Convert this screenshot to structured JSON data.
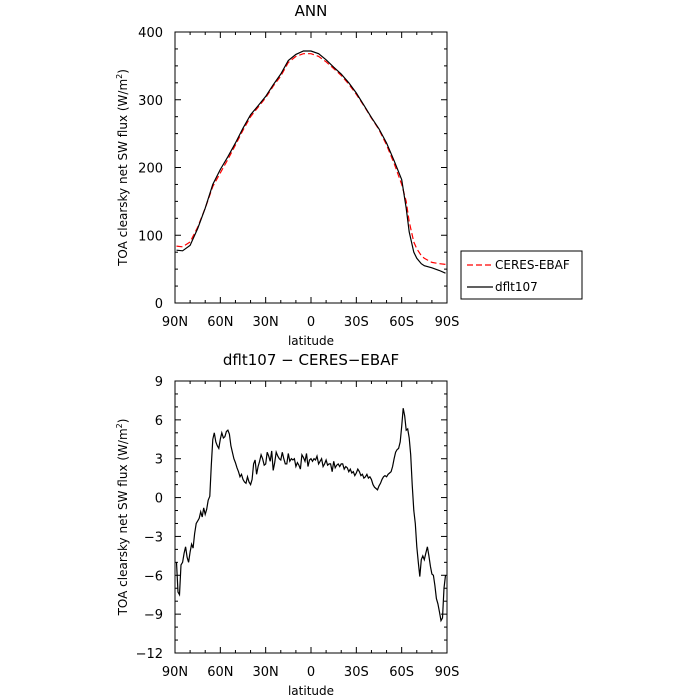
{
  "chart_data": [
    {
      "type": "line",
      "title": "ANN",
      "xlabel": "latitude",
      "ylabel": "TOA clearsky net SW flux (W/m",
      "ylabel_sup": "2",
      "ylabel_end": ")",
      "xlim": [
        90,
        -90
      ],
      "ylim": [
        0,
        400
      ],
      "xticks": [
        {
          "value": 90,
          "label": "90N"
        },
        {
          "value": 60,
          "label": "60N"
        },
        {
          "value": 30,
          "label": "30N"
        },
        {
          "value": 0,
          "label": "0"
        },
        {
          "value": -30,
          "label": "30S"
        },
        {
          "value": -60,
          "label": "60S"
        },
        {
          "value": -90,
          "label": "90S"
        }
      ],
      "yticks": [
        {
          "value": 0,
          "label": "0"
        },
        {
          "value": 100,
          "label": "100"
        },
        {
          "value": 200,
          "label": "200"
        },
        {
          "value": 300,
          "label": "300"
        },
        {
          "value": 400,
          "label": "400"
        }
      ],
      "legend": {
        "placement": "right"
      },
      "series": [
        {
          "name": "CERES-EBAF",
          "color": "#ff0000",
          "dash": "dashed",
          "x": [
            89,
            85,
            80,
            75,
            70,
            65,
            60,
            55,
            50,
            45,
            40,
            35,
            30,
            25,
            20,
            15,
            10,
            5,
            0,
            -5,
            -10,
            -15,
            -20,
            -25,
            -30,
            -35,
            -40,
            -45,
            -50,
            -55,
            -60,
            -63,
            -65,
            -68,
            -70,
            -73,
            -75,
            -80,
            -85,
            -89
          ],
          "y": [
            84,
            83,
            90,
            112,
            140,
            172,
            192,
            212,
            233,
            255,
            275,
            289,
            303,
            320,
            335,
            355,
            364,
            368,
            368,
            364,
            356,
            346,
            336,
            323,
            308,
            291,
            273,
            256,
            233,
            206,
            175,
            150,
            120,
            90,
            80,
            70,
            66,
            60,
            58,
            57
          ]
        },
        {
          "name": "dflt107",
          "color": "#000000",
          "dash": "solid",
          "x": [
            89,
            85,
            80,
            75,
            70,
            65,
            60,
            55,
            50,
            45,
            40,
            35,
            30,
            25,
            20,
            15,
            10,
            5,
            0,
            -5,
            -10,
            -15,
            -20,
            -25,
            -30,
            -35,
            -40,
            -45,
            -50,
            -55,
            -60,
            -63,
            -65,
            -68,
            -70,
            -73,
            -75,
            -80,
            -85,
            -89
          ],
          "y": [
            78,
            77,
            85,
            110,
            140,
            175,
            197,
            216,
            236,
            258,
            278,
            291,
            305,
            322,
            338,
            358,
            367,
            372,
            372,
            368,
            359,
            348,
            338,
            325,
            310,
            292,
            274,
            257,
            236,
            210,
            182,
            140,
            105,
            75,
            66,
            58,
            55,
            52,
            48,
            44
          ]
        }
      ]
    },
    {
      "type": "line",
      "title": "dflt107 − CERES−EBAF",
      "xlabel": "latitude",
      "ylabel": "TOA clearsky net SW flux (W/m",
      "ylabel_sup": "2",
      "ylabel_end": ")",
      "xlim": [
        90,
        -90
      ],
      "ylim": [
        -12,
        9
      ],
      "xticks": [
        {
          "value": 90,
          "label": "90N"
        },
        {
          "value": 60,
          "label": "60N"
        },
        {
          "value": 30,
          "label": "30N"
        },
        {
          "value": 0,
          "label": "0"
        },
        {
          "value": -30,
          "label": "30S"
        },
        {
          "value": -60,
          "label": "60S"
        },
        {
          "value": -90,
          "label": "90S"
        }
      ],
      "yticks": [
        {
          "value": -12,
          "label": "−12"
        },
        {
          "value": -9,
          "label": "−9"
        },
        {
          "value": -6,
          "label": "−6"
        },
        {
          "value": -3,
          "label": "−3"
        },
        {
          "value": 0,
          "label": "0"
        },
        {
          "value": 3,
          "label": "3"
        },
        {
          "value": 6,
          "label": "6"
        },
        {
          "value": 9,
          "label": "9"
        }
      ],
      "series": [
        {
          "color": "#000000",
          "dash": "solid",
          "x": [
            89,
            88,
            87,
            86,
            85,
            84,
            83,
            82,
            81,
            80,
            79,
            78,
            77,
            76,
            75,
            74,
            73,
            72,
            71,
            70,
            69,
            68,
            67,
            66,
            65,
            64,
            63,
            62,
            61,
            60,
            59,
            58,
            57,
            56,
            55,
            54,
            53,
            52,
            51,
            50,
            49,
            48,
            47,
            46,
            45,
            44,
            43,
            42,
            41,
            40,
            39,
            38,
            37,
            36,
            35,
            34,
            33,
            32,
            31,
            30,
            29,
            28,
            27,
            26,
            25,
            24,
            23,
            22,
            21,
            20,
            19,
            18,
            17,
            16,
            15,
            14,
            13,
            12,
            11,
            10,
            9,
            8,
            7,
            6,
            5,
            4,
            3,
            2,
            1,
            0,
            -1,
            -2,
            -3,
            -4,
            -5,
            -6,
            -7,
            -8,
            -9,
            -10,
            -11,
            -12,
            -13,
            -14,
            -15,
            -16,
            -17,
            -18,
            -19,
            -20,
            -21,
            -22,
            -23,
            -24,
            -25,
            -26,
            -27,
            -28,
            -29,
            -30,
            -31,
            -32,
            -33,
            -34,
            -35,
            -36,
            -37,
            -38,
            -39,
            -40,
            -41,
            -42,
            -43,
            -44,
            -45,
            -46,
            -47,
            -48,
            -49,
            -50,
            -51,
            -52,
            -53,
            -54,
            -55,
            -56,
            -57,
            -58,
            -59,
            -60,
            -61,
            -62,
            -63,
            -64,
            -65,
            -66,
            -67,
            -68,
            -69,
            -70,
            -71,
            -72,
            -73,
            -74,
            -75,
            -76,
            -77,
            -78,
            -79,
            -80,
            -81,
            -82,
            -83,
            -84,
            -85,
            -86,
            -87,
            -88,
            -89
          ],
          "y": [
            -5.0,
            -7.3,
            -7.5,
            -5.2,
            -5.0,
            -4.3,
            -3.8,
            -4.6,
            -5.0,
            -4.2,
            -3.6,
            -3.9,
            -2.8,
            -2.0,
            -1.8,
            -1.6,
            -1.1,
            -1.5,
            -0.8,
            -1.3,
            -0.9,
            -0.2,
            0.1,
            2.5,
            4.5,
            5.0,
            4.3,
            4.0,
            3.8,
            4.5,
            5.0,
            4.6,
            4.7,
            5.1,
            5.2,
            4.9,
            4.0,
            3.5,
            3.0,
            2.7,
            2.3,
            2.0,
            1.6,
            1.8,
            1.4,
            1.2,
            1.1,
            1.6,
            1.2,
            1.0,
            1.4,
            2.6,
            2.9,
            1.8,
            2.4,
            2.8,
            3.3,
            3.0,
            2.5,
            2.6,
            3.5,
            3.2,
            2.8,
            3.6,
            2.1,
            2.7,
            3.5,
            3.2,
            3.0,
            2.9,
            3.5,
            3.0,
            2.6,
            2.6,
            3.4,
            2.8,
            3.0,
            2.9,
            3.0,
            2.4,
            2.7,
            2.5,
            2.2,
            3.3,
            3.1,
            2.8,
            3.4,
            2.4,
            2.9,
            3.0,
            2.8,
            3.0,
            2.9,
            3.2,
            2.6,
            2.8,
            3.0,
            2.4,
            2.6,
            2.9,
            2.5,
            2.6,
            2.6,
            2.0,
            2.8,
            2.3,
            2.5,
            2.6,
            2.4,
            2.6,
            2.6,
            2.2,
            2.4,
            2.3,
            2.0,
            2.2,
            1.9,
            2.0,
            1.7,
            1.9,
            2.2,
            2.0,
            1.7,
            1.8,
            1.5,
            1.6,
            1.8,
            1.5,
            1.6,
            1.4,
            1.0,
            0.8,
            0.7,
            0.6,
            0.9,
            1.1,
            1.4,
            1.6,
            1.7,
            1.6,
            1.8,
            1.9,
            2.0,
            2.4,
            3.0,
            3.5,
            3.7,
            3.8,
            4.3,
            5.5,
            6.9,
            6.3,
            5.2,
            5.3,
            4.6,
            3.3,
            1.0,
            -1.0,
            -2.0,
            -3.8,
            -5.0,
            -6.1,
            -4.8,
            -4.5,
            -4.8,
            -4.3,
            -3.8,
            -4.5,
            -5.3,
            -5.9,
            -6.0,
            -6.8,
            -7.8,
            -8.2,
            -8.8,
            -9.5,
            -9.3,
            -7.0,
            -6.0
          ]
        }
      ]
    }
  ]
}
